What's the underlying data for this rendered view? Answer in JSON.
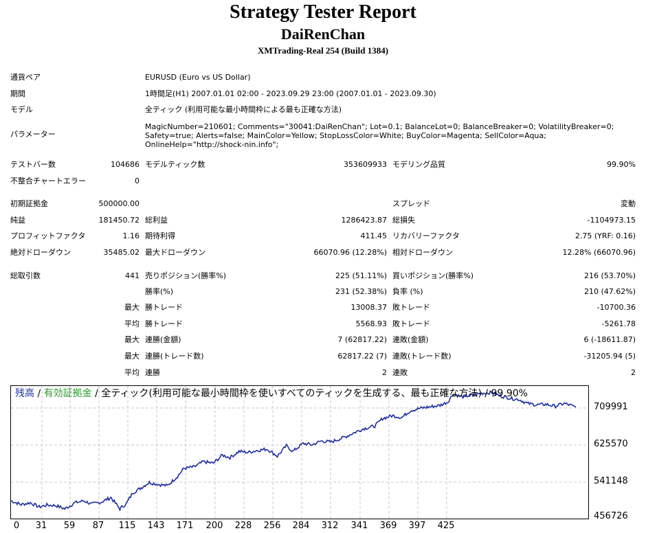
{
  "report": {
    "title": "Strategy Tester Report",
    "expert": "DaiRenChan",
    "server": "XMTrading-Real 254 (Build 1384)"
  },
  "info": {
    "symbol_label": "通貨ペア",
    "symbol_value": "EURUSD (Euro vs US Dollar)",
    "period_label": "期間",
    "period_value": "1時間足(H1) 2007.01.01 02:00 - 2023.09.29 23:00 (2007.01.01 - 2023.09.30)",
    "model_label": "モデル",
    "model_value": "全ティック (利用可能な最小時間枠による最も正確な方法)",
    "params_label": "パラメーター",
    "params_value": "MagicNumber=210601; Comments=\"30041:DaiRenChan\"; Lot=0.1; BalanceLot=0; BalanceBreaker=0; VolatilityBreaker=0; Safety=true; Alerts=false; MainColor=Yellow; StopLossColor=White; BuyColor=Magenta; SellColor=Aqua; OnlineHelp=\"http://shock-nin.info\";"
  },
  "stats": {
    "bars_label": "テストバー数",
    "bars_value": "104686",
    "ticks_label": "モデルティック数",
    "ticks_value": "353609933",
    "quality_label": "モデリング品質",
    "quality_value": "99.90%",
    "mismatch_label": "不整合チャートエラー",
    "mismatch_value": "0",
    "deposit_label": "初期証拠金",
    "deposit_value": "500000.00",
    "spread_label": "スプレッド",
    "spread_value": "変動",
    "net_label": "純益",
    "net_value": "181450.72",
    "gross_profit_label": "総利益",
    "gross_profit_value": "1286423.87",
    "gross_loss_label": "総損失",
    "gross_loss_value": "-1104973.15",
    "pf_label": "プロフィットファクタ",
    "pf_value": "1.16",
    "expected_label": "期待利得",
    "expected_value": "411.45",
    "recovery_label": "リカバリーファクタ",
    "recovery_value": "2.75 (YRF: 0.16)",
    "abs_dd_label": "絶対ドローダウン",
    "abs_dd_value": "35485.02",
    "max_dd_label": "最大ドローダウン",
    "max_dd_value": "66070.96 (12.28%)",
    "rel_dd_label": "相対ドローダウン",
    "rel_dd_value": "12.28% (66070.96)",
    "total_trades_label": "総取引数",
    "total_trades_value": "441",
    "short_label": "売りポジション(勝率%)",
    "short_value": "225 (51.11%)",
    "long_label": "買いポジション(勝率%)",
    "long_value": "216 (53.70%)",
    "win_pct_label": "勝率(%)",
    "win_pct_value": "231 (52.38%)",
    "loss_pct_label": "負率 (%)",
    "loss_pct_value": "210 (47.62%)",
    "max_prefix": "最大",
    "avg_prefix": "平均",
    "largest_win_label": "勝トレード",
    "largest_win_value": "13008.37",
    "largest_loss_label": "敗トレード",
    "largest_loss_value": "-10700.36",
    "avg_win_label": "勝トレード",
    "avg_win_value": "5568.93",
    "avg_loss_label": "敗トレード",
    "avg_loss_value": "-5261.78",
    "max_consec_win_money_label": "連勝(金額)",
    "max_consec_win_money_value": "7 (62817.22)",
    "max_consec_loss_money_label": "連敗(金額)",
    "max_consec_loss_money_value": "6 (-18611.87)",
    "max_consec_win_count_label": "連勝(トレード数)",
    "max_consec_win_count_value": "62817.22 (7)",
    "max_consec_loss_count_label": "連敗(トレード数)",
    "max_consec_loss_count_value": "-31205.94 (5)",
    "avg_consec_win_label": "連勝",
    "avg_consec_win_value": "2",
    "avg_consec_loss_label": "連敗",
    "avg_consec_loss_value": "2"
  },
  "chart_data": {
    "type": "line",
    "legend": {
      "balance": "残高",
      "sep1": " / ",
      "equity": "有効証拠金",
      "sep2": " / ",
      "rest": "全ティック(利用可能な最小時間枠を使いすべてのティックを生成する、最も正確な方法) / 99.90%"
    },
    "colors": {
      "line": "#1e2e9e",
      "balance_text": "#1e2ea0",
      "equity_text": "#2a9a2a"
    },
    "xticks": [
      "0",
      "31",
      "59",
      "87",
      "115",
      "143",
      "171",
      "200",
      "228",
      "256",
      "284",
      "312",
      "341",
      "369",
      "397",
      "425"
    ],
    "yticks": [
      "709991",
      "625570",
      "541148",
      "456726"
    ],
    "xlim": [
      0,
      441
    ],
    "ylim": [
      456726,
      737000
    ],
    "grid": true,
    "series": [
      {
        "x": [
          0,
          8,
          15,
          22,
          28,
          35,
          42,
          50,
          57,
          63,
          70,
          78,
          85,
          90,
          95,
          100,
          108,
          115,
          122,
          130,
          135,
          143,
          150,
          158,
          165,
          171,
          178,
          185,
          192,
          200,
          208,
          215,
          220,
          228,
          235,
          242,
          250,
          256,
          262,
          268,
          275,
          284,
          290,
          298,
          305,
          312,
          320,
          328,
          335,
          341,
          345,
          352,
          360,
          369,
          375,
          382,
          390,
          397,
          403,
          410,
          418,
          425,
          432,
          441
        ],
        "y": [
          493000,
          485000,
          489000,
          480000,
          484000,
          483000,
          476000,
          489000,
          493000,
          486000,
          490000,
          500000,
          476000,
          487000,
          510000,
          518000,
          532000,
          528000,
          525000,
          545000,
          562000,
          565000,
          576000,
          573000,
          590000,
          585000,
          598000,
          596000,
          600000,
          603000,
          588000,
          610000,
          598000,
          615000,
          612000,
          620000,
          618000,
          624000,
          630000,
          638000,
          646000,
          652000,
          668000,
          674000,
          670000,
          685000,
          690000,
          693000,
          696000,
          703000,
          720000,
          714000,
          718000,
          722000,
          723000,
          716000,
          711000,
          708000,
          700000,
          697000,
          698000,
          694000,
          700000,
          692000
        ]
      }
    ]
  }
}
